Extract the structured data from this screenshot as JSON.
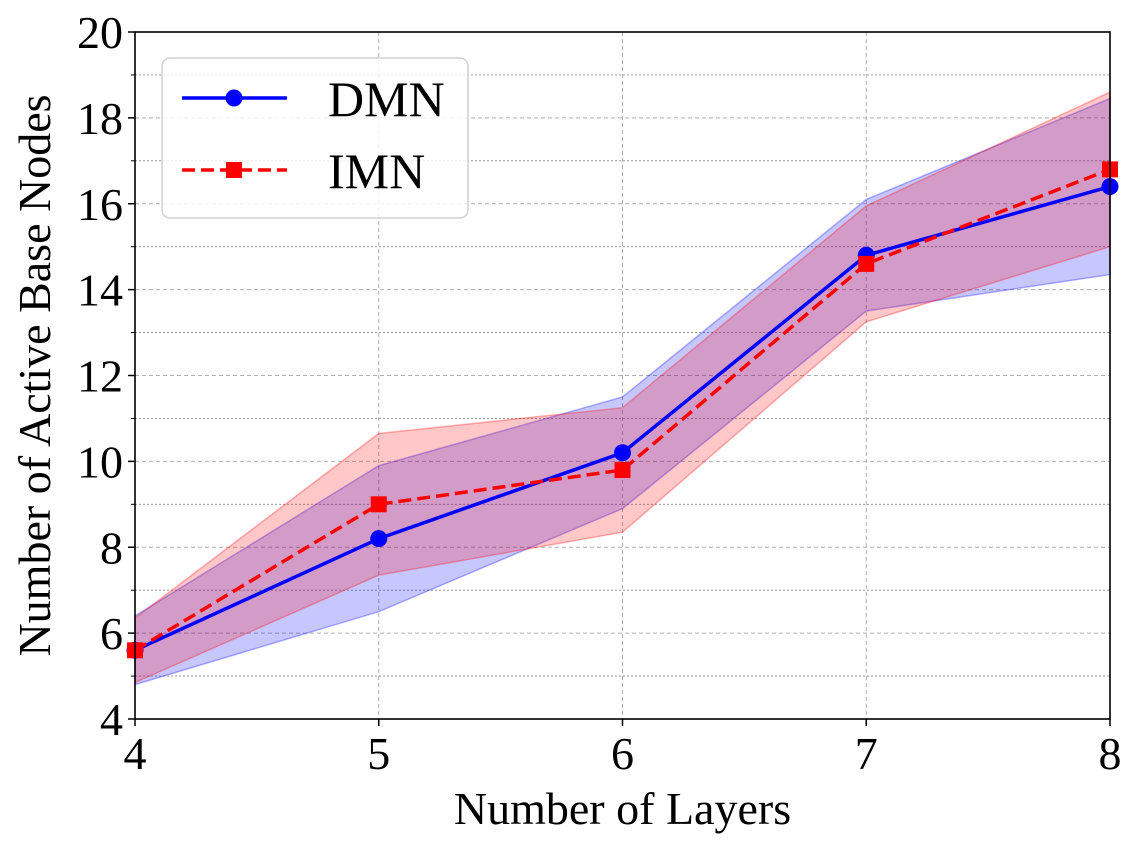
{
  "chart_data": {
    "type": "line",
    "xlabel": "Number of Layers",
    "ylabel": "Number of Active Base Nodes",
    "x": [
      4,
      5,
      6,
      7,
      8
    ],
    "xlim": [
      4,
      8
    ],
    "ylim": [
      4,
      20
    ],
    "xticks": [
      4,
      5,
      6,
      7,
      8
    ],
    "yticks": [
      4,
      6,
      8,
      10,
      12,
      14,
      16,
      18,
      20
    ],
    "grid": true,
    "legend_position": "top-left",
    "series": [
      {
        "name": "DMN",
        "values": [
          5.6,
          8.2,
          10.2,
          14.8,
          16.4
        ],
        "band_lower": [
          4.8,
          6.5,
          8.9,
          13.5,
          14.35
        ],
        "band_upper": [
          6.4,
          9.9,
          11.5,
          16.1,
          18.45
        ],
        "color": "#0000ff",
        "band_color": "#0000ff",
        "line_style": "solid",
        "marker": "circle"
      },
      {
        "name": "IMN",
        "values": [
          5.6,
          9.0,
          9.8,
          14.6,
          16.8
        ],
        "band_lower": [
          4.85,
          7.35,
          8.35,
          13.25,
          15.0
        ],
        "band_upper": [
          6.35,
          10.65,
          11.25,
          15.95,
          18.6
        ],
        "color": "#ff0000",
        "band_color": "#ff0000",
        "line_style": "dashed",
        "marker": "square"
      }
    ]
  }
}
